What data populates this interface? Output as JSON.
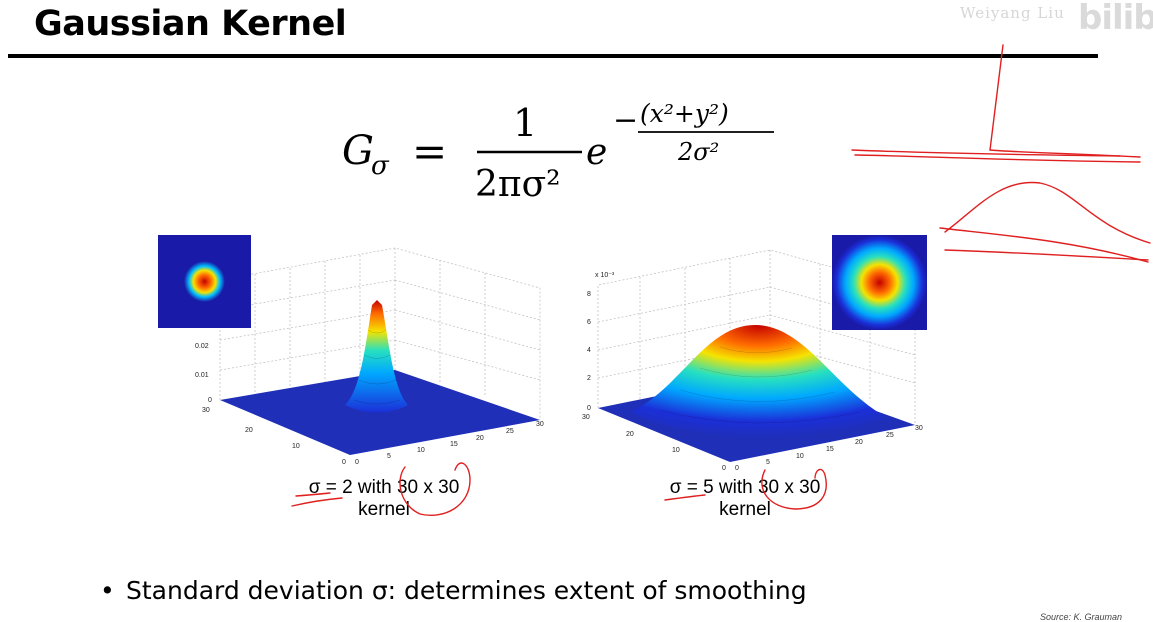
{
  "slide": {
    "title": "Gaussian Kernel",
    "watermark_text": "Weiyang Liu",
    "watermark_logo": "bilibili",
    "formula": {
      "lhs_symbol": "G",
      "lhs_subscript": "σ",
      "equals": "=",
      "numerator": "1",
      "denominator": "2πσ²",
      "base": "e",
      "exponent_numerator": "(x²+y²)",
      "exponent_denominator": "2σ²"
    },
    "heatmap_colors": {
      "background": "#1a1aa8",
      "ring_outer": "#00a8ff",
      "ring_mid": "#f5e300",
      "ring_inner": "#ff6a00",
      "center": "#c40000"
    },
    "left_plot": {
      "caption_line1": "σ = 2 with 30 x 30",
      "caption_line2": "kernel",
      "z_ticks": [
        "0",
        "0.01",
        "0.02"
      ],
      "x_ticks": [
        "0",
        "5",
        "10",
        "15",
        "20",
        "25",
        "30"
      ],
      "y_ticks": [
        "0",
        "10",
        "20",
        "30"
      ]
    },
    "right_plot": {
      "caption_line1": "σ = 5 with 30 x 30",
      "caption_line2": "kernel",
      "z_multiplier": "x 10⁻³",
      "z_ticks": [
        "0",
        "2",
        "4",
        "6",
        "8"
      ],
      "x_ticks": [
        "0",
        "5",
        "10",
        "15",
        "20",
        "25",
        "30"
      ],
      "y_ticks": [
        "0",
        "10",
        "20",
        "30"
      ]
    },
    "bullet": "Standard deviation σ: determines extent of smoothing",
    "credit": "Source: K. Grauman"
  }
}
